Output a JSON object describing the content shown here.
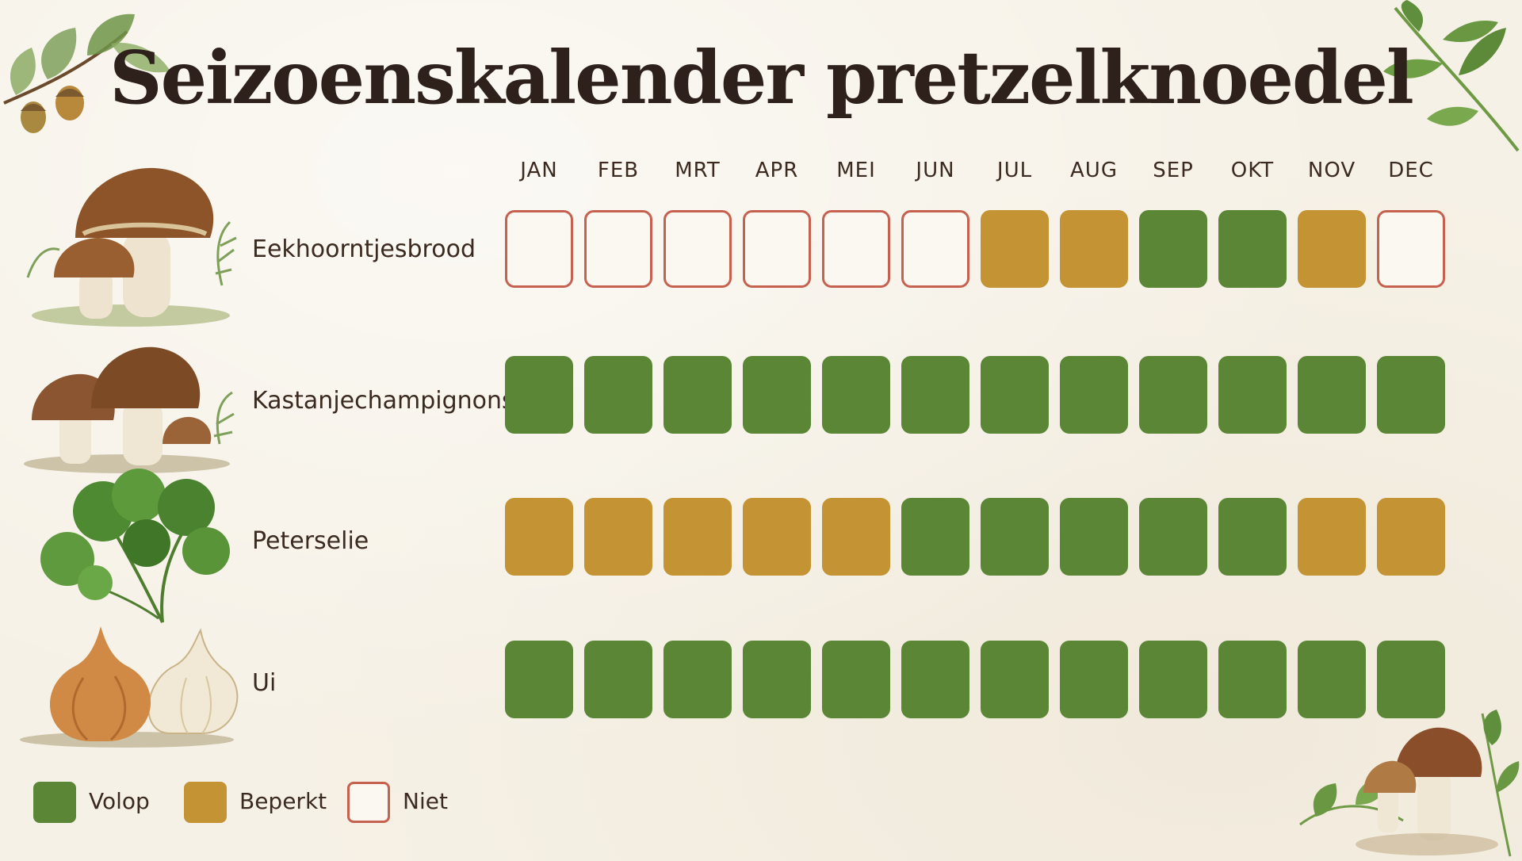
{
  "title": "Seizoenskalender pretzelknoedel",
  "chart_data": {
    "type": "heatmap",
    "title": "Seizoenskalender pretzelknoedel",
    "months": [
      "JAN",
      "FEB",
      "MRT",
      "APR",
      "MEI",
      "JUN",
      "JUL",
      "AUG",
      "SEP",
      "OKT",
      "NOV",
      "DEC"
    ],
    "status_colors": {
      "volop": "#5b8636",
      "beperkt": "#c49333",
      "niet": "#c7614f"
    },
    "rows": [
      {
        "label": "Eekhoorntjesbrood",
        "illustration": "porcini-mushroom-illustration",
        "values": [
          "niet",
          "niet",
          "niet",
          "niet",
          "niet",
          "niet",
          "beperkt",
          "beperkt",
          "volop",
          "volop",
          "beperkt",
          "niet"
        ]
      },
      {
        "label": "Kastanjechampignons",
        "illustration": "chestnut-mushroom-illustration",
        "values": [
          "volop",
          "volop",
          "volop",
          "volop",
          "volop",
          "volop",
          "volop",
          "volop",
          "volop",
          "volop",
          "volop",
          "volop"
        ]
      },
      {
        "label": "Peterselie",
        "illustration": "parsley-illustration",
        "values": [
          "beperkt",
          "beperkt",
          "beperkt",
          "beperkt",
          "beperkt",
          "volop",
          "volop",
          "volop",
          "volop",
          "volop",
          "beperkt",
          "beperkt"
        ]
      },
      {
        "label": "Ui",
        "illustration": "onion-illustration",
        "values": [
          "volop",
          "volop",
          "volop",
          "volop",
          "volop",
          "volop",
          "volop",
          "volop",
          "volop",
          "volop",
          "volop",
          "volop"
        ]
      }
    ],
    "legend": [
      {
        "key": "volop",
        "label": "Volop"
      },
      {
        "key": "beperkt",
        "label": "Beperkt"
      },
      {
        "key": "niet",
        "label": "Niet"
      }
    ],
    "legend_position": "bottom-left",
    "decorations": [
      "oak-leaf-acorn-icon",
      "parsley-sprig-icon",
      "mushroom-parsley-icon"
    ]
  }
}
